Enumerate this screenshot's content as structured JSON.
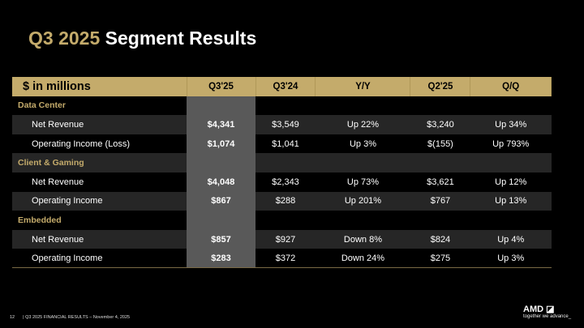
{
  "title": {
    "accent": "Q3 2025",
    "main": "Segment Results"
  },
  "table": {
    "headers": [
      "$ in millions",
      "Q3'25",
      "Q3'24",
      "Y/Y",
      "Q2'25",
      "Q/Q"
    ],
    "sections": [
      {
        "name": "Data Center",
        "rows": [
          {
            "label": "Net Revenue",
            "values": [
              "$4,341",
              "$3,549",
              "Up 22%",
              "$3,240",
              "Up 34%"
            ]
          },
          {
            "label": "Operating Income (Loss)",
            "values": [
              "$1,074",
              "$1,041",
              "Up 3%",
              "$(155)",
              "Up 793%"
            ]
          }
        ]
      },
      {
        "name": "Client & Gaming",
        "rows": [
          {
            "label": "Net Revenue",
            "values": [
              "$4,048",
              "$2,343",
              "Up 73%",
              "$3,621",
              "Up 12%"
            ]
          },
          {
            "label": "Operating Income",
            "values": [
              "$867",
              "$288",
              "Up 201%",
              "$767",
              "Up 13%"
            ]
          }
        ]
      },
      {
        "name": "Embedded",
        "rows": [
          {
            "label": "Net Revenue",
            "values": [
              "$857",
              "$927",
              "Down 8%",
              "$824",
              "Up 4%"
            ]
          },
          {
            "label": "Operating Income",
            "values": [
              "$283",
              "$372",
              "Down 24%",
              "$275",
              "Up 3%"
            ]
          }
        ]
      }
    ]
  },
  "footer": {
    "page": "12",
    "text": "|  Q3 2025 FINANCIAL RESULTS – November 4, 2025"
  },
  "logo": {
    "brand": "AMD",
    "tagline": "together we advance_"
  },
  "colors": {
    "accent": "#c4ab6b",
    "highlight_column": "#595959",
    "row_alt": "#262626"
  }
}
